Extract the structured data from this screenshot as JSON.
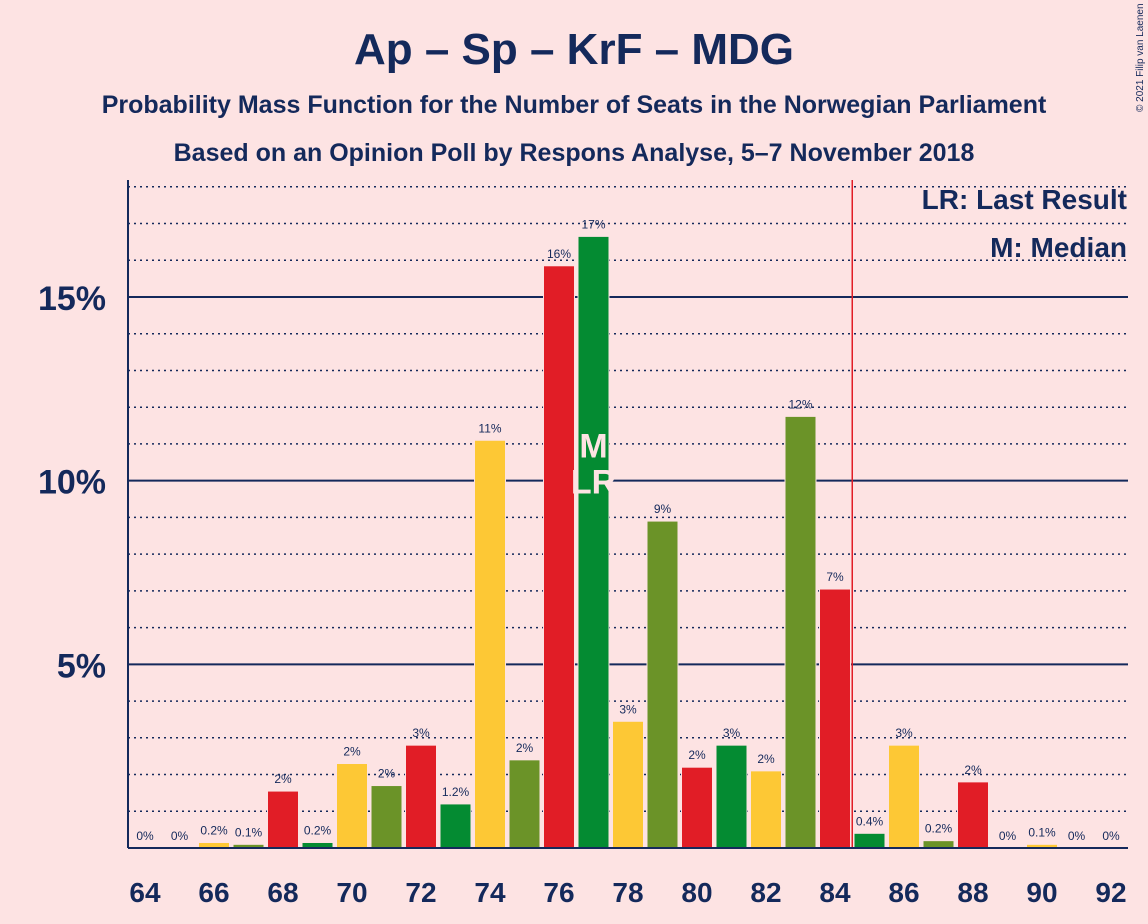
{
  "chart_data": {
    "type": "bar",
    "title": "Ap – Sp – KrF – MDG",
    "subtitle": "Probability Mass Function for the Number of Seats in the Norwegian Parliament",
    "subtitle2": "Based on an Opinion Poll by Respons Analyse, 5–7 November 2018",
    "copyright": "© 2021 Filip van Laenen",
    "legend": {
      "lr": "LR: Last Result",
      "m": "M: Median",
      "placement": "top-right"
    },
    "ylim": [
      0,
      18.2
    ],
    "yticks": [
      {
        "value": 5,
        "label": "5%"
      },
      {
        "value": 10,
        "label": "10%"
      },
      {
        "value": 15,
        "label": "15%"
      }
    ],
    "minor_grid_step": 1,
    "xticks": [
      64,
      66,
      68,
      70,
      72,
      74,
      76,
      78,
      80,
      82,
      84,
      86,
      88,
      90,
      92
    ],
    "last_result": 85,
    "median": 77,
    "median_label": "M",
    "last_result_label": "LR",
    "markers_at": 77,
    "colors": {
      "background": "#fde3e3",
      "text": "#14295b",
      "red": "#e11d26",
      "green": "#048b32",
      "yellow": "#fdc835",
      "olive": "#6b9328",
      "last_result_line": "#e11d26"
    },
    "bars": [
      {
        "x": 64,
        "value": 0,
        "label": "0%",
        "color": "yellow"
      },
      {
        "x": 65,
        "value": 0,
        "label": "0%",
        "color": "olive"
      },
      {
        "x": 66,
        "value": 0.15,
        "label": "0.2%",
        "color": "yellow"
      },
      {
        "x": 67,
        "value": 0.1,
        "label": "0.1%",
        "color": "olive"
      },
      {
        "x": 68,
        "value": 1.55,
        "label": "2%",
        "color": "red"
      },
      {
        "x": 69,
        "value": 0.15,
        "label": "0.2%",
        "color": "green"
      },
      {
        "x": 70,
        "value": 2.3,
        "label": "2%",
        "color": "yellow"
      },
      {
        "x": 71,
        "value": 1.7,
        "label": "2%",
        "color": "olive"
      },
      {
        "x": 72,
        "value": 2.8,
        "label": "3%",
        "color": "red"
      },
      {
        "x": 73,
        "value": 1.2,
        "label": "1.2%",
        "color": "green"
      },
      {
        "x": 74,
        "value": 11.1,
        "label": "11%",
        "color": "yellow"
      },
      {
        "x": 75,
        "value": 2.4,
        "label": "2%",
        "color": "olive"
      },
      {
        "x": 76,
        "value": 15.85,
        "label": "16%",
        "color": "red"
      },
      {
        "x": 77,
        "value": 16.65,
        "label": "17%",
        "color": "green"
      },
      {
        "x": 78,
        "value": 3.45,
        "label": "3%",
        "color": "yellow"
      },
      {
        "x": 79,
        "value": 8.9,
        "label": "9%",
        "color": "olive"
      },
      {
        "x": 80,
        "value": 2.2,
        "label": "2%",
        "color": "red"
      },
      {
        "x": 81,
        "value": 2.8,
        "label": "3%",
        "color": "green"
      },
      {
        "x": 82,
        "value": 2.1,
        "label": "2%",
        "color": "yellow"
      },
      {
        "x": 83,
        "value": 11.75,
        "label": "12%",
        "color": "olive"
      },
      {
        "x": 84,
        "value": 7.05,
        "label": "7%",
        "color": "red"
      },
      {
        "x": 85,
        "value": 0.4,
        "label": "0.4%",
        "color": "green"
      },
      {
        "x": 86,
        "value": 2.8,
        "label": "3%",
        "color": "yellow"
      },
      {
        "x": 87,
        "value": 0.2,
        "label": "0.2%",
        "color": "olive"
      },
      {
        "x": 88,
        "value": 1.8,
        "label": "2%",
        "color": "red"
      },
      {
        "x": 89,
        "value": 0,
        "label": "0%",
        "color": "green"
      },
      {
        "x": 90,
        "value": 0.1,
        "label": "0.1%",
        "color": "yellow"
      },
      {
        "x": 91,
        "value": 0,
        "label": "0%",
        "color": "olive"
      },
      {
        "x": 92,
        "value": 0,
        "label": "0%",
        "color": "red"
      }
    ]
  }
}
